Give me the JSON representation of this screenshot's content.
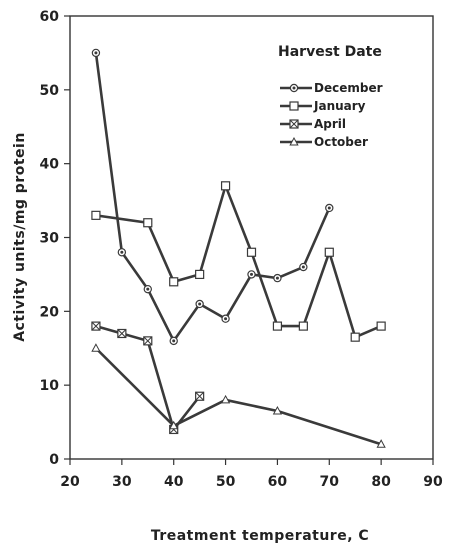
{
  "chart_data": {
    "type": "line",
    "title": "",
    "xlabel": "Treatment temperature, C",
    "ylabel": "Activity units/mg protein",
    "xlim": [
      20,
      90
    ],
    "ylim": [
      0,
      60
    ],
    "xticks": [
      20,
      30,
      40,
      50,
      60,
      70,
      80,
      90
    ],
    "yticks": [
      0,
      10,
      20,
      30,
      40,
      50,
      60
    ],
    "grid": false,
    "legend": {
      "title": "Harvest Date",
      "placement": "top-right"
    },
    "line_color": "#3a3a3a",
    "series": [
      {
        "name": "December",
        "marker": "dotted-circle",
        "points": [
          [
            25,
            55
          ],
          [
            30,
            28
          ],
          [
            35,
            23
          ],
          [
            40,
            16
          ],
          [
            45,
            21
          ],
          [
            50,
            19
          ],
          [
            55,
            25
          ],
          [
            60,
            24.5
          ],
          [
            65,
            26
          ],
          [
            70,
            34
          ]
        ]
      },
      {
        "name": "January",
        "marker": "square",
        "points": [
          [
            25,
            33
          ],
          [
            35,
            32
          ],
          [
            40,
            24
          ],
          [
            45,
            25
          ],
          [
            50,
            37
          ],
          [
            55,
            28
          ],
          [
            60,
            18
          ],
          [
            65,
            18
          ],
          [
            70,
            28
          ],
          [
            75,
            16.5
          ],
          [
            80,
            18
          ]
        ]
      },
      {
        "name": "April",
        "marker": "crossed-square",
        "points": [
          [
            25,
            18
          ],
          [
            30,
            17
          ],
          [
            35,
            16
          ],
          [
            40,
            4
          ],
          [
            45,
            8.5
          ]
        ]
      },
      {
        "name": "October",
        "marker": "triangle",
        "points": [
          [
            25,
            15
          ],
          [
            40,
            4.5
          ],
          [
            50,
            8
          ],
          [
            60,
            6.5
          ],
          [
            80,
            2
          ]
        ]
      }
    ]
  }
}
